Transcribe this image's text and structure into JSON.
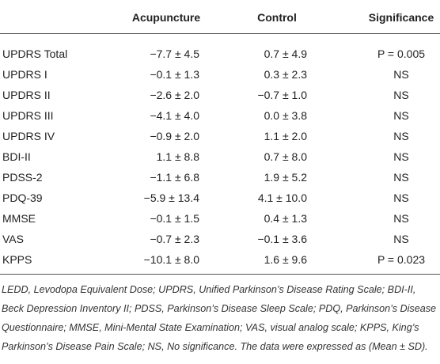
{
  "table": {
    "header": [
      "Acupuncture",
      "Control",
      "Significance"
    ],
    "rows": [
      [
        "UPDRS Total",
        "−7.7 ± 4.5",
        "0.7 ± 4.9",
        "P = 0.005"
      ],
      [
        "UPDRS I",
        "−0.1 ± 1.3",
        "0.3 ± 2.3",
        "NS"
      ],
      [
        "UPDRS II",
        "−2.6 ± 2.0",
        "−0.7 ± 1.0",
        "NS"
      ],
      [
        "UPDRS III",
        "−4.1 ± 4.0",
        "0.0 ± 3.8",
        "NS"
      ],
      [
        "UPDRS IV",
        "−0.9 ± 2.0",
        "1.1 ± 2.0",
        "NS"
      ],
      [
        "BDI-II",
        "1.1 ± 8.8",
        "0.7 ± 8.0",
        "NS"
      ],
      [
        "PDSS-2",
        "−1.1 ± 6.8",
        "1.9 ± 5.2",
        "NS"
      ],
      [
        "PDQ-39",
        "−5.9 ± 13.4",
        "4.1 ± 10.0",
        "NS"
      ],
      [
        "MMSE",
        "−0.1 ± 1.5",
        "0.4 ± 1.3",
        "NS"
      ],
      [
        "VAS",
        "−0.7 ± 2.3",
        "−0.1 ± 3.6",
        "NS"
      ],
      [
        "KPPS",
        "−10.1 ± 8.0",
        "1.6 ± 9.6",
        "P = 0.023"
      ]
    ]
  },
  "footnote": "LEDD, Levodopa Equivalent Dose; UPDRS, Unified Parkinson’s Disease Rating Scale; BDI-II, Beck Depression Inventory II; PDSS, Parkinson’s Disease Sleep Scale; PDQ, Parkinson’s Disease Questionnaire; MMSE, Mini-Mental State Examination; VAS, visual analog scale; KPPS, King’s Parkinson’s Disease Pain Scale; NS, No significance. The data were expressed as (Mean ± SD)."
}
